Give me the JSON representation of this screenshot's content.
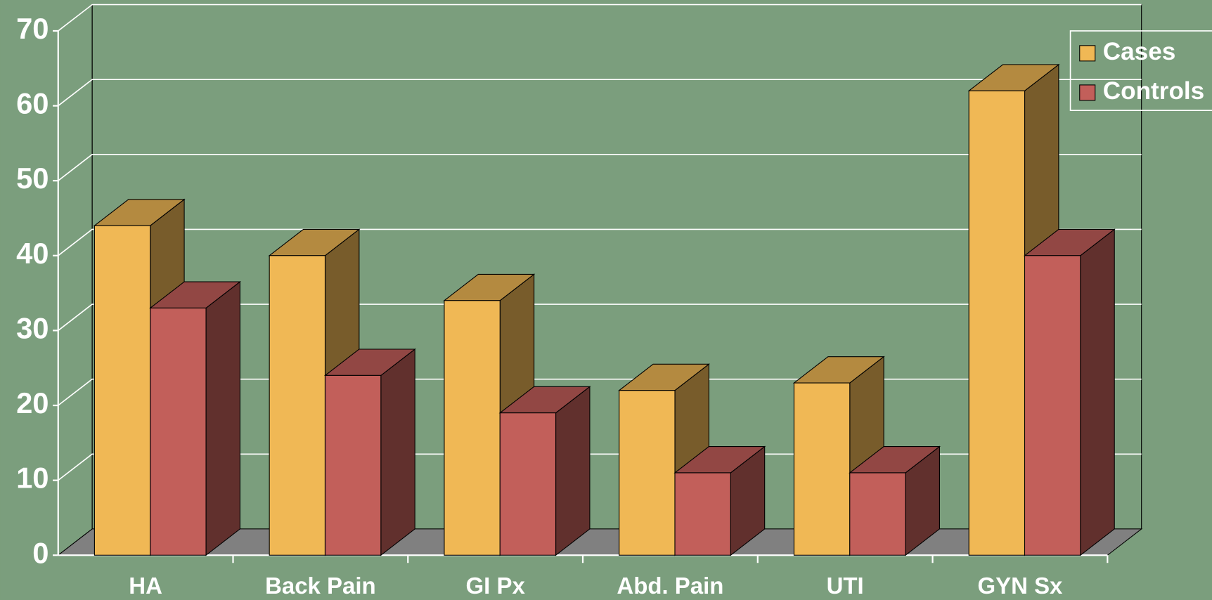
{
  "chart_data": {
    "type": "bar3d",
    "categories": [
      "HA",
      "Back Pain",
      "GI Px",
      "Abd. Pain",
      "UTI",
      "GYN Sx"
    ],
    "series": [
      {
        "name": "Cases",
        "color": "#f0b855",
        "values": [
          44,
          40,
          34,
          22,
          23,
          62
        ]
      },
      {
        "name": "Controls",
        "color": "#c25f5a",
        "values": [
          33,
          24,
          19,
          11,
          11,
          40
        ]
      }
    ],
    "ylim": [
      0,
      70
    ],
    "yticks": [
      0,
      10,
      20,
      30,
      40,
      50,
      60,
      70
    ],
    "grid": true,
    "legend": "top right"
  }
}
